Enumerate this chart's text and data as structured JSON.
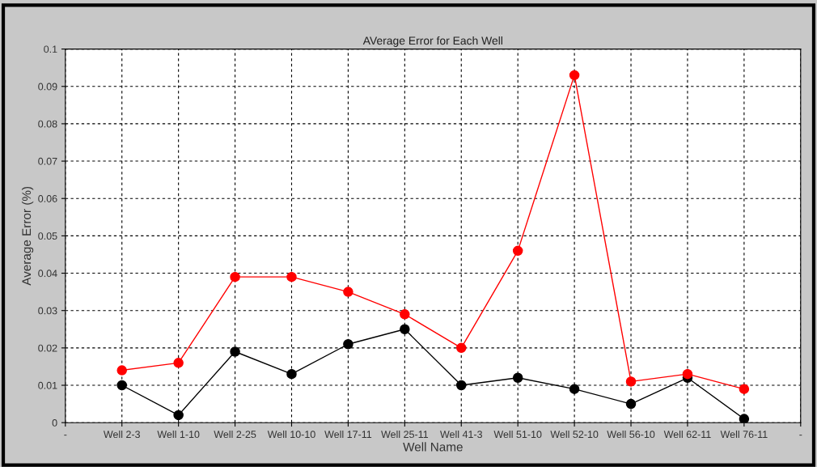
{
  "chart_data": {
    "type": "line",
    "title": "AVerage Error for Each Well",
    "xlabel": "Well Name",
    "ylabel": "Average Error (%)",
    "categories": [
      "-",
      "Well 2-3",
      "Well 1-10",
      "Well 2-25",
      "Well 10-10",
      "Well 17-11",
      "Well 25-11",
      "Well 41-3",
      "Well 51-10",
      "Well 52-10",
      "Well 56-10",
      "Well 62-11",
      "Well 76-11",
      "-"
    ],
    "series": [
      {
        "color": "#ff0000",
        "values": [
          null,
          0.014,
          0.016,
          0.039,
          0.039,
          0.035,
          0.029,
          0.02,
          0.046,
          0.093,
          0.011,
          0.013,
          0.009,
          null
        ]
      },
      {
        "color": "#000000",
        "values": [
          null,
          0.01,
          0.002,
          0.019,
          0.013,
          0.021,
          0.025,
          0.01,
          0.012,
          0.009,
          0.005,
          0.012,
          0.001,
          null
        ]
      }
    ],
    "ylim": [
      0,
      0.1
    ],
    "yticks": [
      0,
      0.01,
      0.02,
      0.03,
      0.04,
      0.05,
      0.06,
      0.07,
      0.08,
      0.09,
      0.1
    ],
    "grid": true,
    "marker": "circle",
    "line_style": "solid"
  }
}
